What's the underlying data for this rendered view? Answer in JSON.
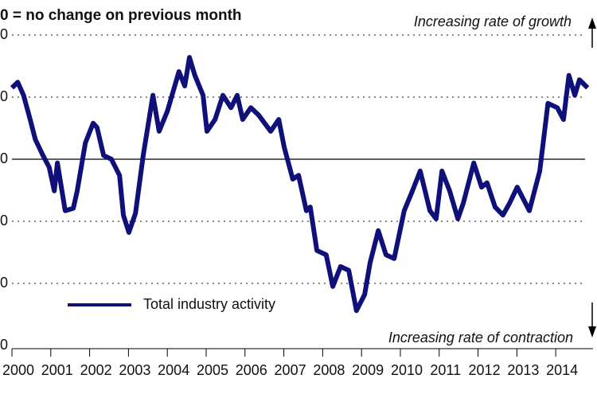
{
  "chart_data": {
    "type": "line",
    "title": "0 = no change on previous month",
    "annotations": [
      "Increasing rate of growth",
      "Increasing rate of contraction"
    ],
    "x": [
      2000.0,
      2000.15,
      2000.3,
      2000.47,
      2000.6,
      2000.8,
      2000.96,
      2001.09,
      2001.17,
      2001.37,
      2001.58,
      2001.68,
      2001.89,
      2002.09,
      2002.19,
      2002.36,
      2002.56,
      2002.77,
      2002.87,
      2003.01,
      2003.18,
      2003.38,
      2003.63,
      2003.79,
      2004.0,
      2004.3,
      2004.45,
      2004.57,
      2004.71,
      2004.92,
      2005.02,
      2005.23,
      2005.43,
      2005.64,
      2005.8,
      2005.94,
      2006.15,
      2006.35,
      2006.66,
      2006.87,
      2007.01,
      2007.23,
      2007.38,
      2007.58,
      2007.68,
      2007.85,
      2008.09,
      2008.26,
      2008.46,
      2008.67,
      2008.87,
      2009.08,
      2009.22,
      2009.43,
      2009.63,
      2009.84,
      2010.1,
      2010.31,
      2010.51,
      2010.76,
      2010.92,
      2011.07,
      2011.27,
      2011.48,
      2011.62,
      2011.89,
      2012.09,
      2012.23,
      2012.44,
      2012.64,
      2012.81,
      2013.01,
      2013.32,
      2013.59,
      2013.8,
      2014.04,
      2014.2,
      2014.34,
      2014.49,
      2014.61,
      2014.82
    ],
    "series": [
      {
        "name": "Total industry activity",
        "color": "#10107a",
        "values": [
          61.5,
          62.4,
          60.3,
          56.4,
          53.2,
          50.6,
          48.7,
          44.9,
          49.4,
          41.7,
          42.1,
          44.9,
          52.6,
          55.8,
          55.1,
          50.6,
          50,
          47.4,
          41.0,
          38.2,
          41.3,
          50.6,
          60.3,
          54.5,
          57.7,
          64.1,
          61.8,
          66.4,
          63.5,
          60.3,
          54.5,
          56.4,
          60.3,
          58.3,
          60.3,
          56.4,
          58.3,
          57.1,
          54.5,
          56.4,
          51.9,
          46.8,
          47.4,
          41.7,
          42.3,
          35.3,
          34.6,
          29.5,
          32.7,
          32.1,
          25.6,
          28.2,
          33.3,
          38.5,
          34.6,
          34.0,
          41.7,
          44.9,
          48.1,
          41.7,
          40.4,
          48.1,
          44.9,
          40.4,
          42.9,
          49.4,
          45.5,
          46.2,
          42.3,
          41.0,
          42.9,
          45.5,
          41.7,
          48.1,
          59.0,
          58.3,
          56.4,
          63.5,
          60.3,
          62.8,
          61.5
        ]
      }
    ],
    "xlim": [
      2000,
      2014.96
    ],
    "xticks": [
      {
        "value": 2000,
        "label": "2000"
      },
      {
        "value": 2001,
        "label": "2001"
      },
      {
        "value": 2002,
        "label": "2002"
      },
      {
        "value": 2003,
        "label": "2003"
      },
      {
        "value": 2004,
        "label": "2004"
      },
      {
        "value": 2005,
        "label": "2005"
      },
      {
        "value": 2006,
        "label": "2006"
      },
      {
        "value": 2007,
        "label": "2007"
      },
      {
        "value": 2008,
        "label": "2008"
      },
      {
        "value": 2009,
        "label": "2009"
      },
      {
        "value": 2010,
        "label": "2010"
      },
      {
        "value": 2011,
        "label": "2011"
      },
      {
        "value": 2012,
        "label": "2012"
      },
      {
        "value": 2013,
        "label": "2013"
      },
      {
        "value": 2014,
        "label": "2014"
      }
    ],
    "ylim": [
      20,
      70
    ],
    "yticks": [
      {
        "value": 20,
        "label": "0"
      },
      {
        "value": 30,
        "label": "0"
      },
      {
        "value": 40,
        "label": "0"
      },
      {
        "value": 50,
        "label": "0"
      },
      {
        "value": 60,
        "label": "0"
      },
      {
        "value": 70,
        "label": "0"
      }
    ],
    "baseline": 50,
    "grid": true,
    "legend": "lower left"
  }
}
